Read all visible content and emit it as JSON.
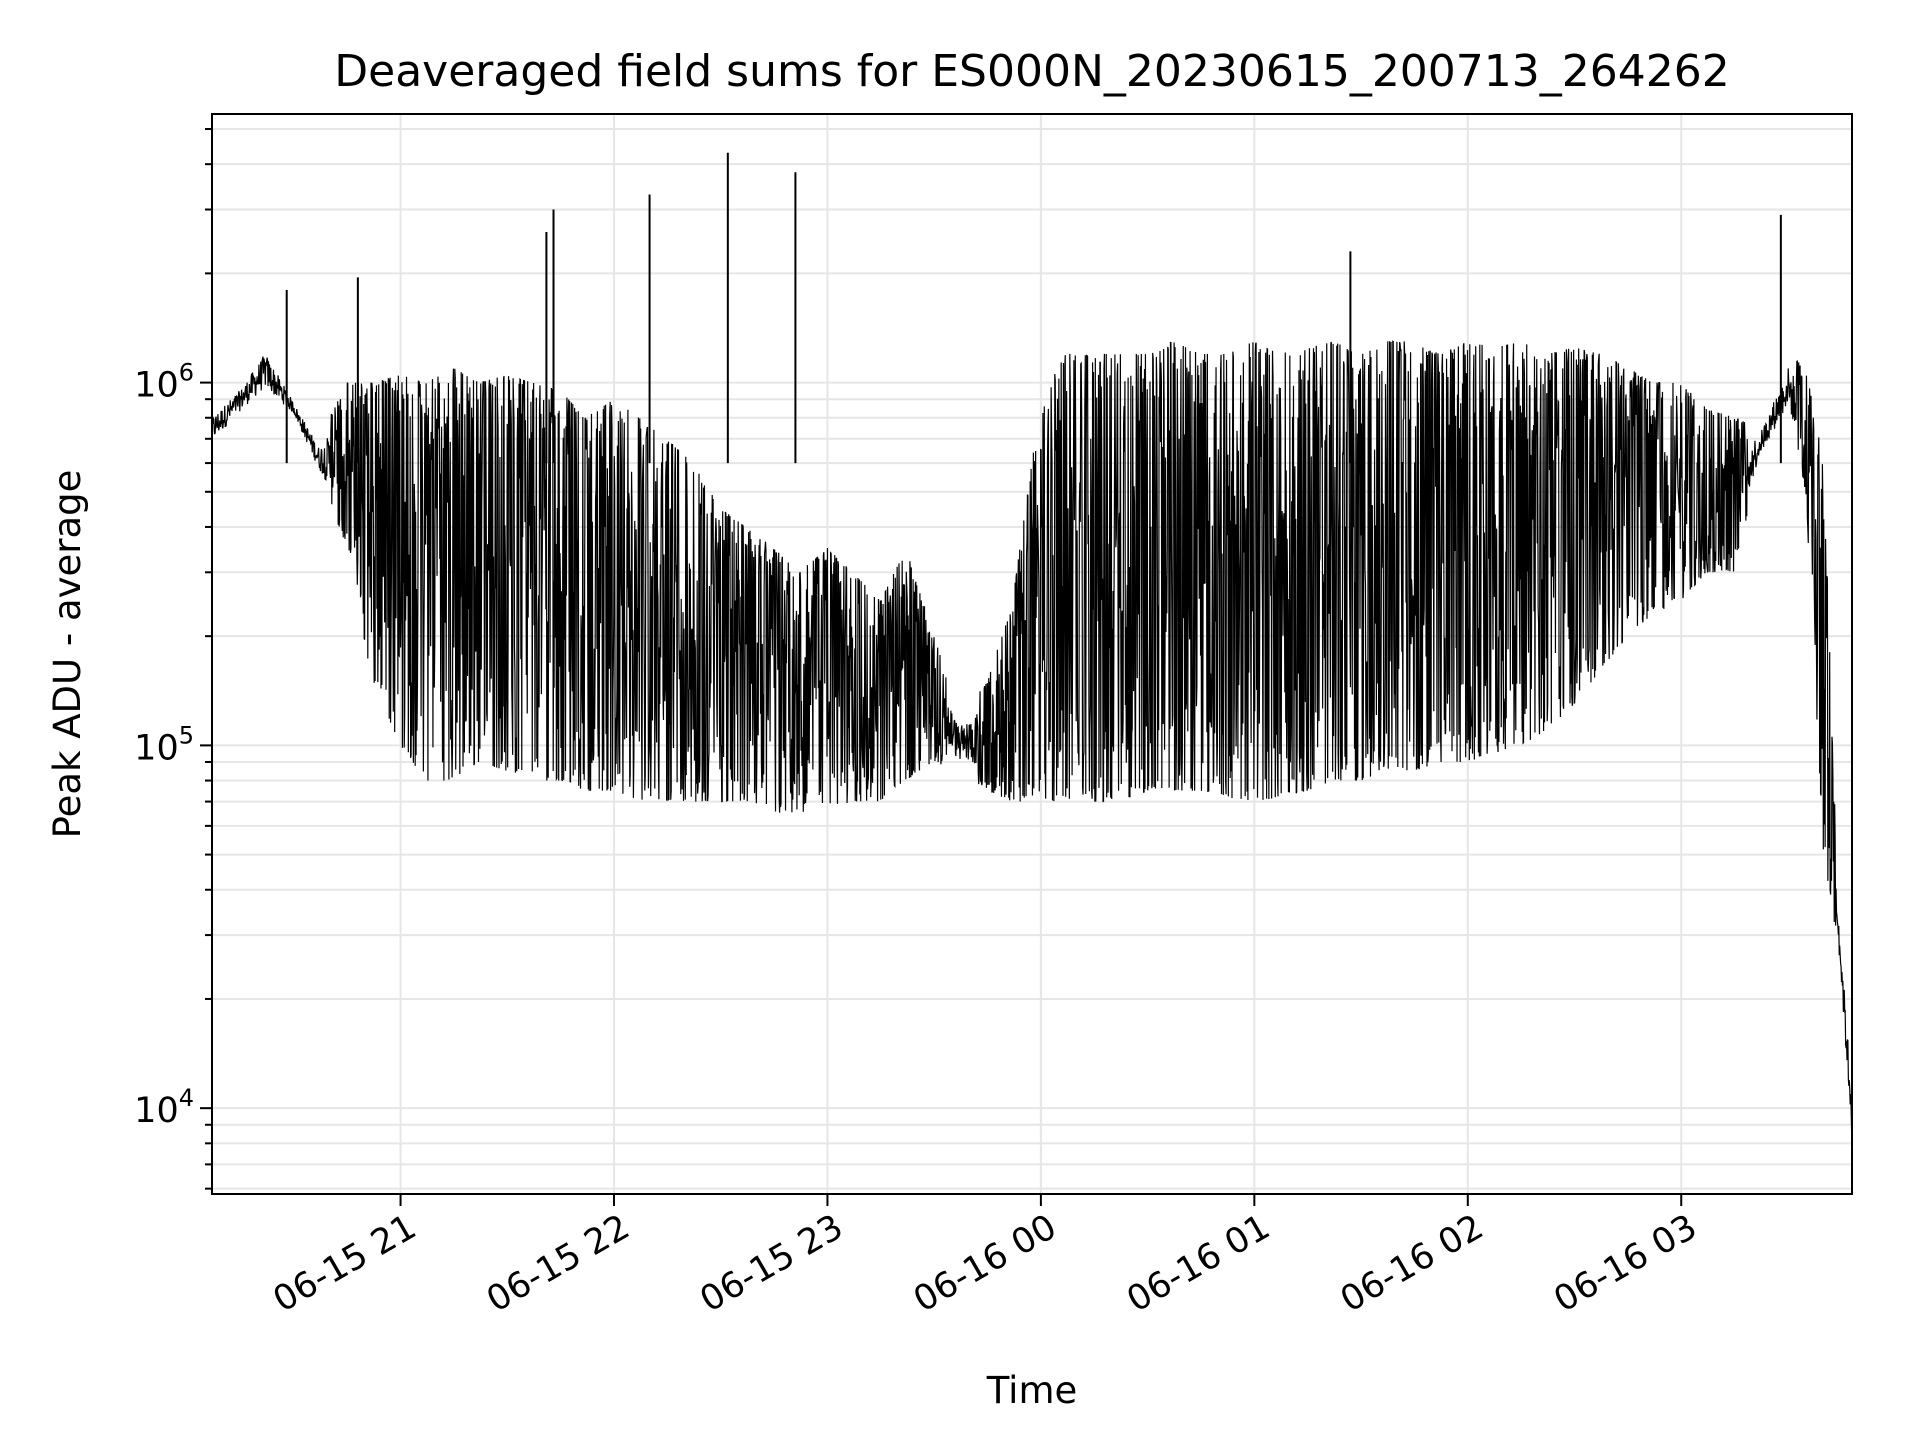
{
  "chart_data": {
    "type": "line",
    "title": "Deaveraged field sums for ES000N_20230615_200713_264262",
    "xlabel": "Time",
    "ylabel": "Peak ADU - average",
    "yscale": "log",
    "ylim": [
      5800,
      5500000
    ],
    "xlim": [
      "06-15 20:07",
      "06-16 03:48"
    ],
    "grid": true,
    "line_color": "#000000",
    "grid_color": "#e6e6e6",
    "x_ticks": [
      "06-15 21",
      "06-15 22",
      "06-15 23",
      "06-16 00",
      "06-16 01",
      "06-16 02",
      "06-16 03"
    ],
    "y_ticks": [
      {
        "base": "10",
        "exp": "4",
        "value": 10000
      },
      {
        "base": "10",
        "exp": "5",
        "value": 100000
      },
      {
        "base": "10",
        "exp": "6",
        "value": 1000000
      }
    ],
    "series": [
      {
        "x_unit": "hour",
        "x": [
          "06-15 20:07",
          "06-15 20:15",
          "06-15 20:22",
          "06-15 20:30",
          "06-15 20:37",
          "06-15 20:45",
          "06-15 20:52",
          "06-15 21:00",
          "06-15 21:07",
          "06-15 21:15",
          "06-15 21:22",
          "06-15 21:30",
          "06-15 21:37",
          "06-15 21:45",
          "06-15 21:52",
          "06-15 22:00",
          "06-15 22:07",
          "06-15 22:15",
          "06-15 22:22",
          "06-15 22:30",
          "06-15 22:37",
          "06-15 22:45",
          "06-15 22:52",
          "06-15 23:00",
          "06-15 23:07",
          "06-15 23:15",
          "06-15 23:22",
          "06-15 23:30",
          "06-15 23:37",
          "06-15 23:45",
          "06-15 23:52",
          "06-16 00:00",
          "06-16 00:07",
          "06-16 00:15",
          "06-16 00:22",
          "06-16 00:30",
          "06-16 00:37",
          "06-16 00:45",
          "06-16 00:52",
          "06-16 01:00",
          "06-16 01:07",
          "06-16 01:15",
          "06-16 01:22",
          "06-16 01:30",
          "06-16 01:37",
          "06-16 01:45",
          "06-16 01:52",
          "06-16 02:00",
          "06-16 02:07",
          "06-16 02:15",
          "06-16 02:22",
          "06-16 02:30",
          "06-16 02:37",
          "06-16 02:45",
          "06-16 02:52",
          "06-16 03:00",
          "06-16 03:07",
          "06-16 03:15",
          "06-16 03:22",
          "06-16 03:30",
          "06-16 03:35",
          "06-16 03:40",
          "06-16 03:44",
          "06-16 03:48"
        ],
        "upper": [
          850000,
          1000000,
          1300000,
          900000,
          700000,
          1000000,
          1000000,
          1050000,
          1000000,
          1100000,
          1000000,
          1050000,
          1000000,
          950000,
          800000,
          900000,
          800000,
          700000,
          600000,
          450000,
          400000,
          350000,
          300000,
          350000,
          300000,
          250000,
          350000,
          200000,
          120000,
          150000,
          250000,
          900000,
          1200000,
          1200000,
          1200000,
          1200000,
          1300000,
          1200000,
          1200000,
          1300000,
          1200000,
          1250000,
          1300000,
          1200000,
          1300000,
          1300000,
          1200000,
          1300000,
          1250000,
          1300000,
          1200000,
          1250000,
          1200000,
          1100000,
          1000000,
          1000000,
          850000,
          800000,
          750000,
          1200000,
          1100000,
          600000,
          40000,
          12000
        ],
        "lower": [
          650000,
          800000,
          900000,
          800000,
          550000,
          350000,
          150000,
          100000,
          80000,
          80000,
          90000,
          85000,
          80000,
          80000,
          75000,
          75000,
          70000,
          70000,
          70000,
          70000,
          70000,
          65000,
          65000,
          65000,
          70000,
          70000,
          80000,
          90000,
          85000,
          75000,
          70000,
          70000,
          70000,
          70000,
          70000,
          75000,
          75000,
          75000,
          72000,
          70000,
          72000,
          75000,
          80000,
          80000,
          85000,
          85000,
          90000,
          90000,
          95000,
          100000,
          110000,
          130000,
          160000,
          200000,
          230000,
          250000,
          300000,
          300000,
          600000,
          800000,
          500000,
          50000,
          28000,
          7500
        ]
      }
    ],
    "spikes": [
      {
        "x": "06-15 20:28",
        "y": 1800000
      },
      {
        "x": "06-15 20:48",
        "y": 1950000
      },
      {
        "x": "06-15 21:41",
        "y": 2600000
      },
      {
        "x": "06-15 21:43",
        "y": 3000000
      },
      {
        "x": "06-15 22:10",
        "y": 3300000
      },
      {
        "x": "06-15 22:32",
        "y": 4300000
      },
      {
        "x": "06-15 22:51",
        "y": 3800000
      },
      {
        "x": "06-16 01:27",
        "y": 2300000
      },
      {
        "x": "06-16 03:28",
        "y": 2900000
      }
    ]
  }
}
